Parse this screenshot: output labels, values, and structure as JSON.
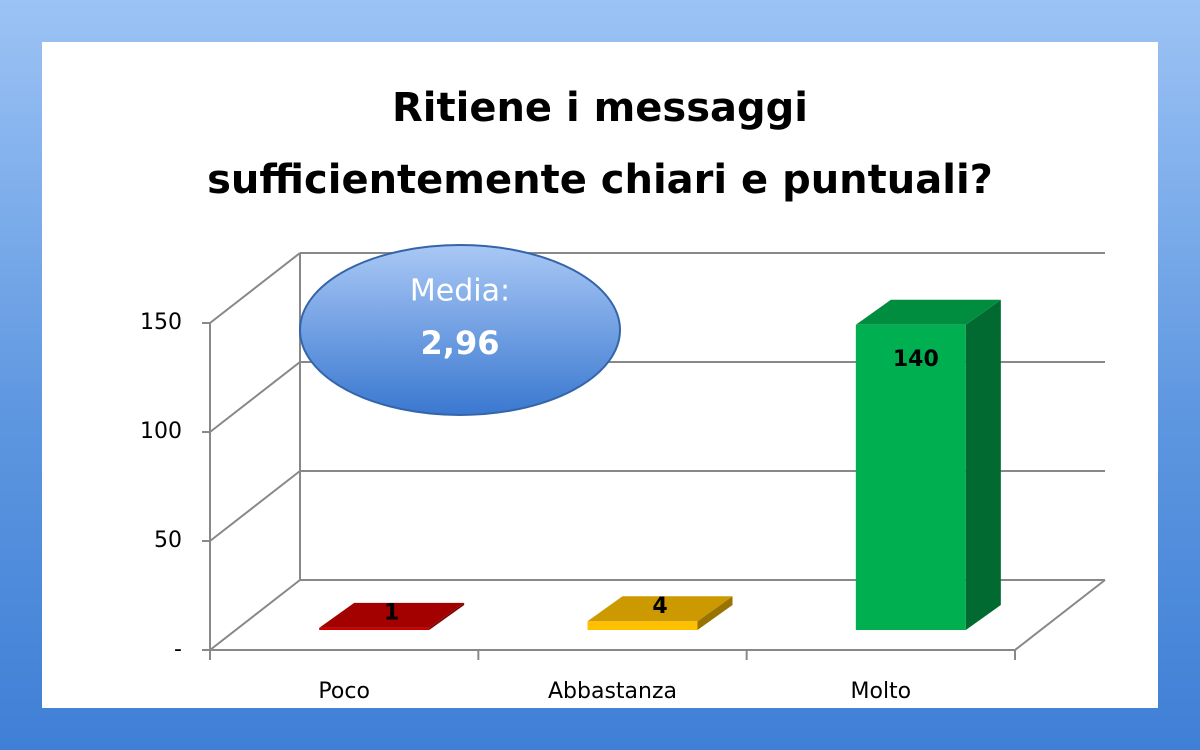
{
  "chart_data": {
    "type": "bar3d",
    "title": "Ritiene i messaggi sufficientemente chiari e puntuali?",
    "categories": [
      "Poco",
      "Abbastanza",
      "Molto"
    ],
    "values": [
      1,
      4,
      140
    ],
    "colors": [
      "#cc0000",
      "#ffc000",
      "#00b050"
    ],
    "ylim": [
      0,
      150
    ],
    "yticks": [
      {
        "value": 0,
        "label": "-"
      },
      50,
      100,
      150
    ],
    "grid": true,
    "annotation": {
      "label": "Media:",
      "value": "2,96"
    }
  }
}
